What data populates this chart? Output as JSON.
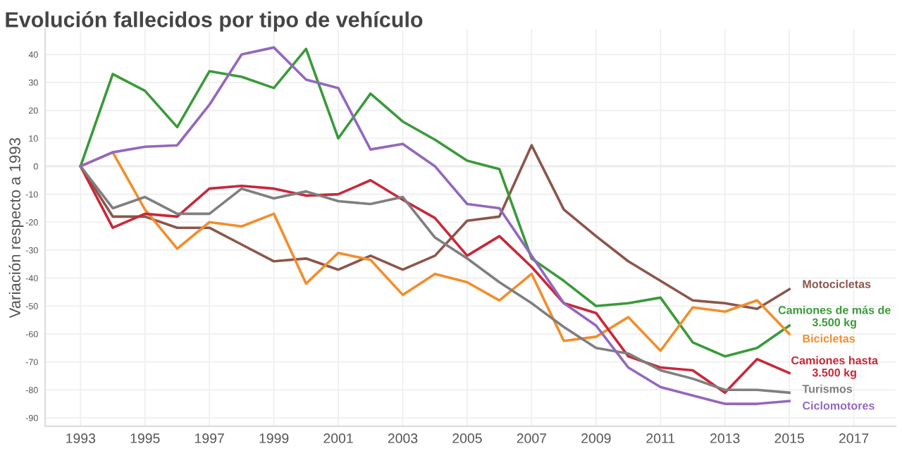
{
  "chart_data": {
    "type": "line",
    "title": "Evolución fallecidos por tipo de vehículo",
    "ylabel": "Variación respecto a 1993",
    "x": [
      1993,
      1994,
      1995,
      1996,
      1997,
      1998,
      1999,
      2000,
      2001,
      2002,
      2003,
      2004,
      2005,
      2006,
      2007,
      2008,
      2009,
      2010,
      2011,
      2012,
      2013,
      2014,
      2015
    ],
    "xlim": [
      1991.9,
      2018.3
    ],
    "ylim": [
      -93,
      49
    ],
    "xticks": [
      1993,
      1995,
      1997,
      1999,
      2001,
      2003,
      2005,
      2007,
      2009,
      2011,
      2013,
      2015,
      2017
    ],
    "yticks": [
      -90,
      -80,
      -70,
      -60,
      -50,
      -40,
      -30,
      -20,
      -10,
      0,
      10,
      20,
      30,
      40
    ],
    "grid": true,
    "legend": false,
    "line_style": "solid",
    "marker": "none",
    "series": [
      {
        "name": "Motocicletas",
        "color": "#8c564b",
        "values": [
          0,
          -18,
          -18,
          -22,
          -22,
          -28,
          -34,
          -33,
          -37,
          -32,
          -37,
          -32,
          -19.5,
          -18,
          7.5,
          -15.5,
          -25,
          -34,
          -41,
          -48,
          -49,
          -51,
          -44
        ]
      },
      {
        "name": "Camiones de más de\n3.500 kg",
        "color": "#3a9a3a",
        "values": [
          0,
          33,
          27,
          14,
          34,
          32,
          28,
          42,
          10,
          26,
          16,
          9.5,
          2,
          -1,
          -33,
          -41,
          -50,
          -49,
          -47,
          -63,
          -68,
          -65,
          -57
        ]
      },
      {
        "name": "Bicicletas",
        "color": "#f28e2b",
        "values": [
          0,
          5,
          -15.5,
          -29.5,
          -20,
          -21.5,
          -17,
          -42,
          -31,
          -33.5,
          -46,
          -38.5,
          -41.5,
          -48,
          -38.5,
          -62.5,
          -61,
          -54,
          -66,
          -50.5,
          -52,
          -48,
          -60
        ]
      },
      {
        "name": "Camiones hasta\n3.500 kg",
        "color": "#c8283a",
        "values": [
          0,
          -22,
          -17,
          -18,
          -8,
          -7,
          -8,
          -10.5,
          -10,
          -5,
          -12,
          -18.5,
          -32,
          -25,
          -36,
          -49,
          -52.5,
          -68,
          -72,
          -73,
          -81,
          -69,
          -74
        ]
      },
      {
        "name": "Turismos",
        "color": "#7f7f7f",
        "values": [
          0,
          -15,
          -11,
          -17,
          -17,
          -8,
          -11.5,
          -9,
          -12.5,
          -13.5,
          -11,
          -25.5,
          -33,
          -41.5,
          -49,
          -57.5,
          -65,
          -67,
          -73,
          -76,
          -80,
          -80,
          -81
        ]
      },
      {
        "name": "Ciclomotores",
        "color": "#9467bd",
        "values": [
          0,
          5,
          7,
          7.5,
          22,
          40,
          42.5,
          31,
          28,
          6,
          8,
          0,
          -13.5,
          -15,
          -32,
          -49,
          -57,
          -72,
          -79,
          -82,
          -85,
          -85,
          -84
        ]
      }
    ]
  }
}
